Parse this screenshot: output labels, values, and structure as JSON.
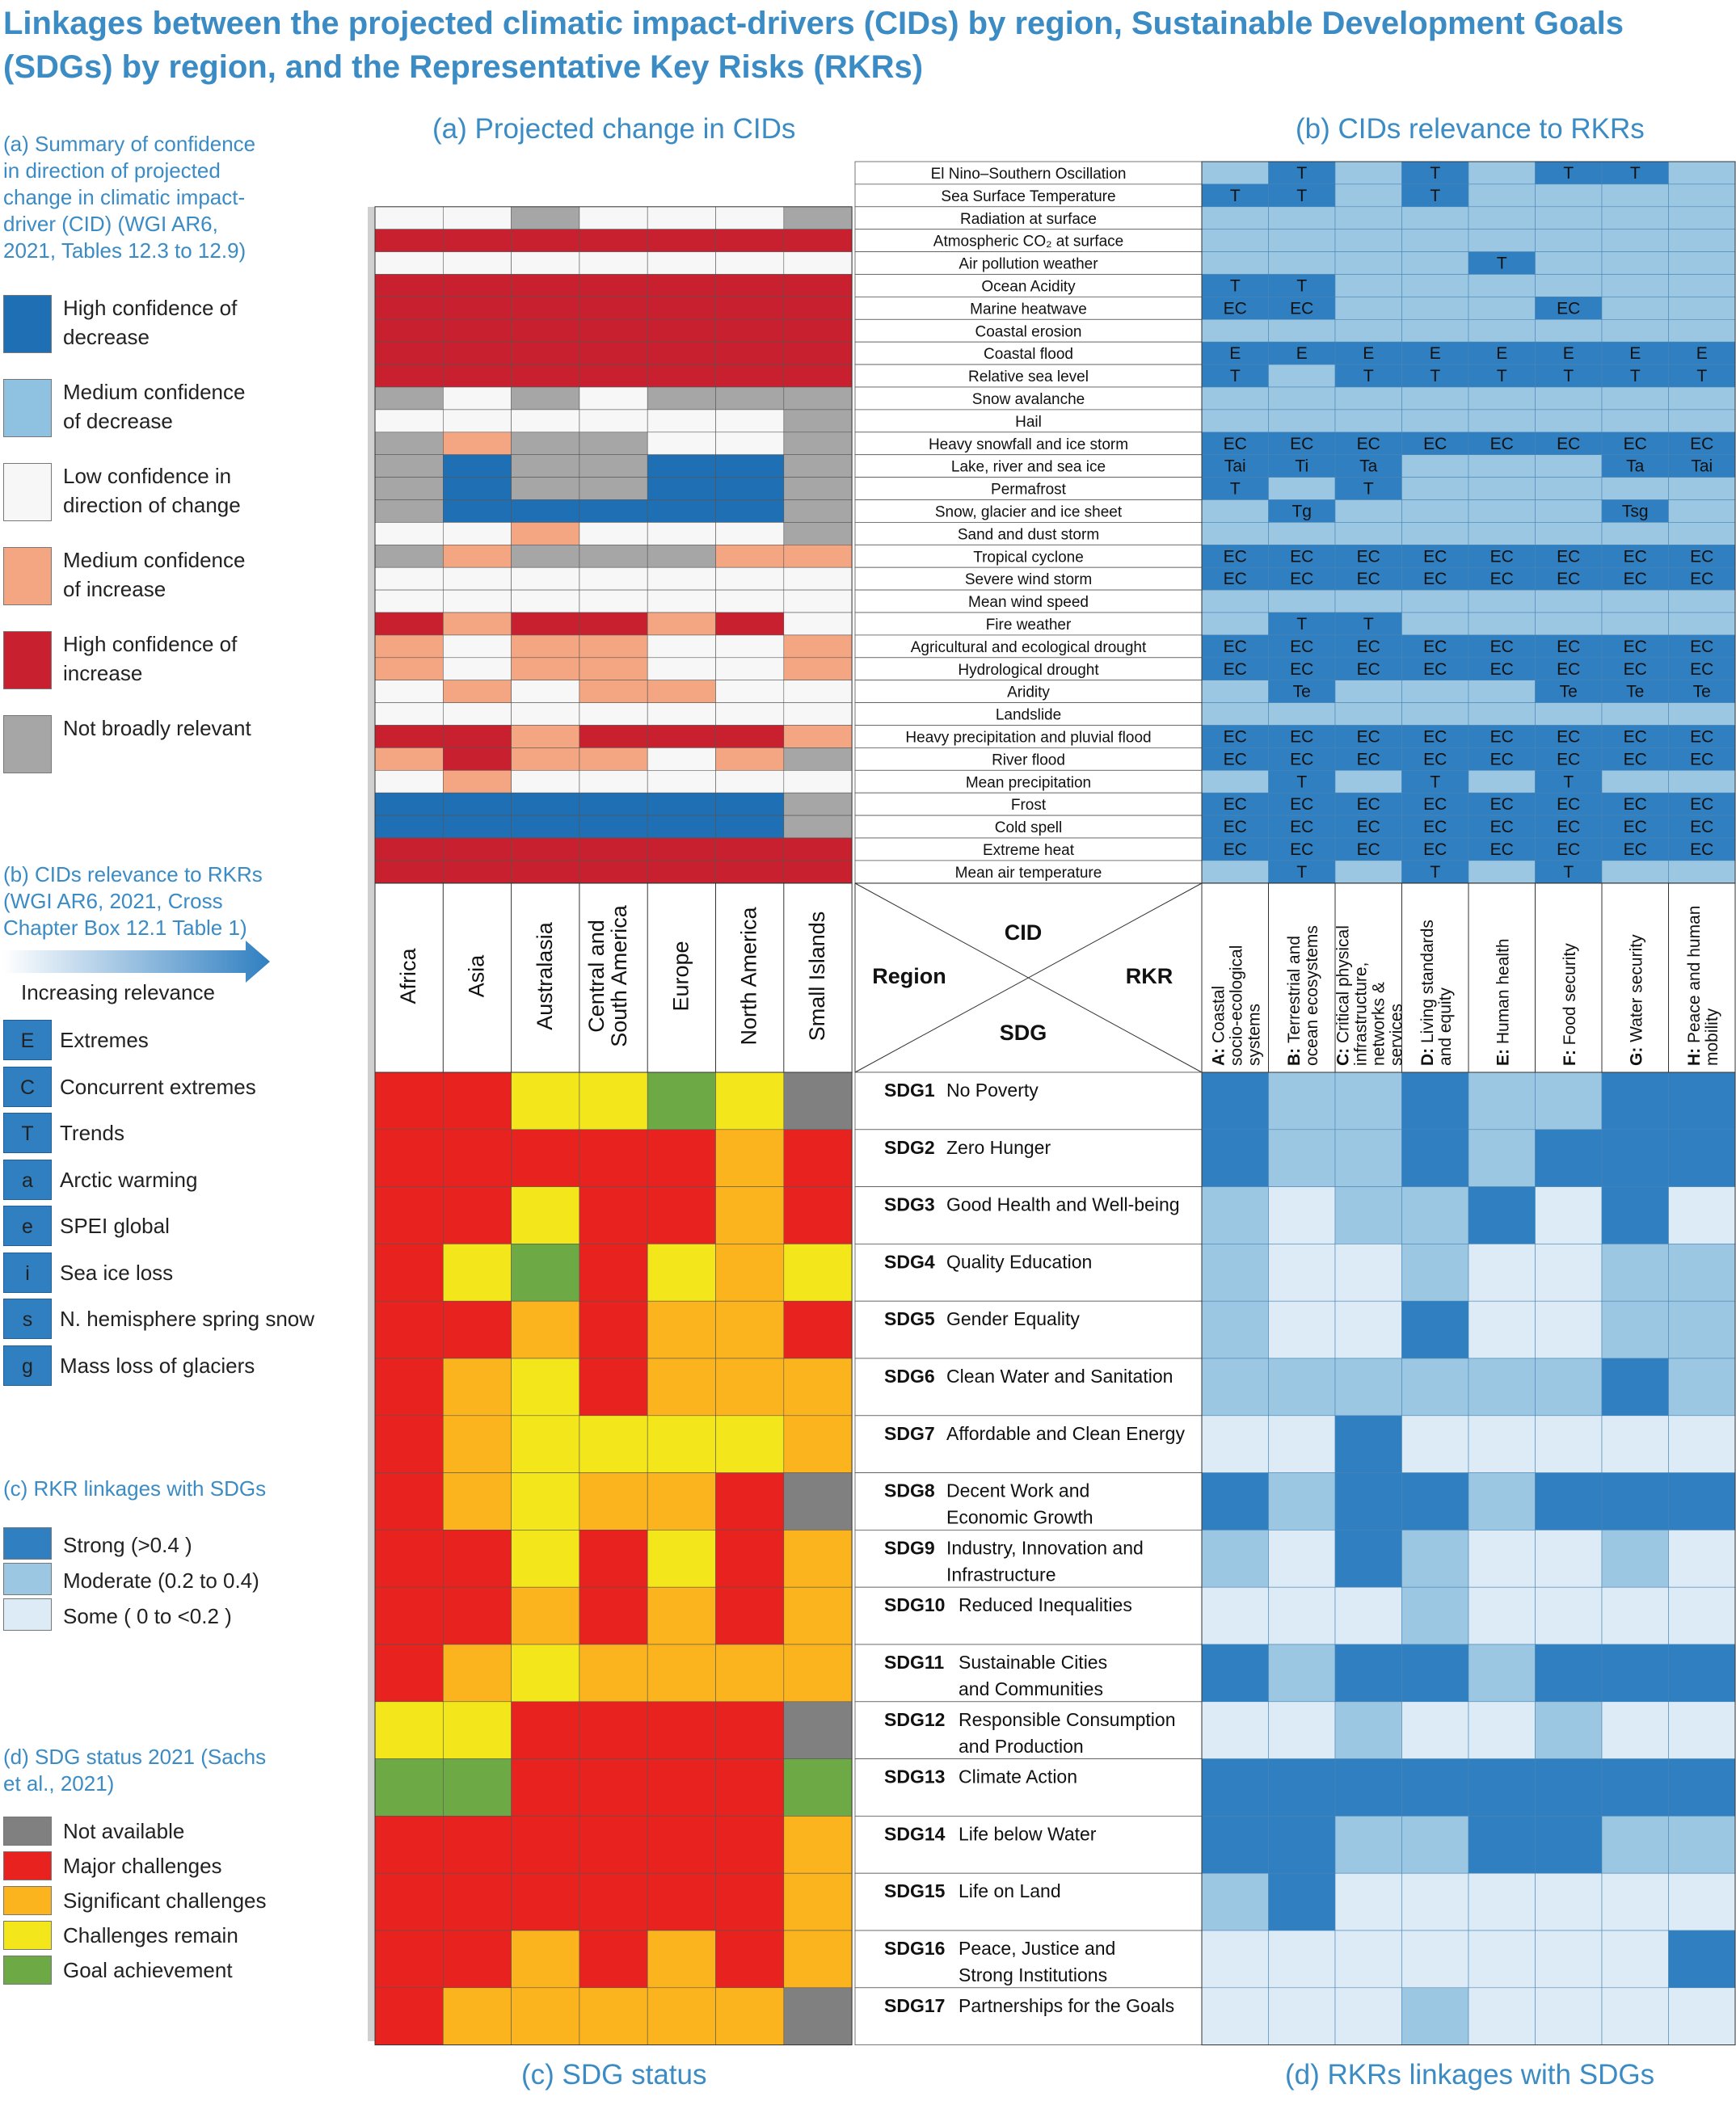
{
  "title": "Linkages between the projected climatic impact-drivers (CIDs) by region, Sustainable Development Goals (SDGs) by region, and the Representative Key Risks (RKRs)",
  "panels": {
    "a": "(a) Projected change in CIDs",
    "b": "(b) CIDs relevance to RKRs",
    "c": "(c) SDG status",
    "d": "(d) RKRs linkages with SDGs"
  },
  "corner": {
    "cid": "CID",
    "region": "Region",
    "rkr": "RKR",
    "sdg": "SDG"
  },
  "legend": {
    "a_title": "(a) Summary of confidence in direction of projected change in climatic impact-driver (CID) (WGI AR6, 2021, Tables 12.3 to 12.9)",
    "a_items": [
      {
        "label": "High confidence of decrease",
        "color": "#1F6FB4"
      },
      {
        "label": "Medium confidence of decrease",
        "color": "#8FC1E0"
      },
      {
        "label": "Low confidence in direction of change",
        "color": "#F7F7F7"
      },
      {
        "label": "Medium confidence of increase",
        "color": "#F4A582"
      },
      {
        "label": "High confidence of increase",
        "color": "#C8202E"
      },
      {
        "label": "Not broadly relevant",
        "color": "#A6A6A6"
      }
    ],
    "b_title": "(b) CIDs relevance to RKRs (WGI AR6, 2021, Cross Chapter Box 12.1 Table 1)",
    "b_arrow": "Increasing relevance",
    "b_codes": [
      {
        "code": "E",
        "label": "Extremes"
      },
      {
        "code": "C",
        "label": "Concurrent extremes"
      },
      {
        "code": "T",
        "label": "Trends"
      },
      {
        "code": "a",
        "label": "Arctic warming"
      },
      {
        "code": "e",
        "label": "SPEI global"
      },
      {
        "code": "i",
        "label": "Sea  ice loss"
      },
      {
        "code": "s",
        "label": "N. hemisphere spring snow"
      },
      {
        "code": "g",
        "label": "Mass loss of glaciers"
      }
    ],
    "c_title": "(c) RKR linkages with SDGs",
    "c_items": [
      {
        "label": "Strong  (>0.4 )",
        "color": "#2F7FC1"
      },
      {
        "label": "Moderate  (0.2 to 0.4)",
        "color": "#9CC7E3"
      },
      {
        "label": "Some ( 0 to <0.2 )",
        "color": "#DDEBF6"
      }
    ],
    "d_title": "(d) SDG status 2021 (Sachs et al., 2021)",
    "d_items": [
      {
        "label": "Not available",
        "color": "#808080"
      },
      {
        "label": "Major challenges",
        "color": "#E8221E"
      },
      {
        "label": "Significant challenges",
        "color": "#FBB41D"
      },
      {
        "label": "Challenges remain",
        "color": "#F3E61A"
      },
      {
        "label": "Goal achievement",
        "color": "#6DAA45"
      }
    ]
  },
  "chart_data": {
    "type": "heatmap",
    "regions": [
      "Africa",
      "Asia",
      "Australasia",
      "Central and South America",
      "Europe",
      "North America",
      "Small Islands"
    ],
    "rkrs": [
      {
        "letter": "A:",
        "name": "Coastal socio-ecological systems"
      },
      {
        "letter": "B:",
        "name": "Terrestrial and ocean ecosystems"
      },
      {
        "letter": "C:",
        "name": "Critical physical infrastructure, networks & services"
      },
      {
        "letter": "D:",
        "name": "Living standards and equity"
      },
      {
        "letter": "E:",
        "name": "Human health"
      },
      {
        "letter": "F:",
        "name": "Food security"
      },
      {
        "letter": "G:",
        "name": "Water security"
      },
      {
        "letter": "H:",
        "name": "Peace and human mobility"
      }
    ],
    "cids": [
      {
        "name": "El Nino–Southern Oscillation",
        "rkr_codes": [
          "",
          "T",
          "",
          "T",
          "",
          "T",
          "T",
          ""
        ],
        "region_only_rkr": true
      },
      {
        "name": "Sea Surface Temperature",
        "rkr_codes": [
          "T",
          "T",
          "",
          "T",
          "",
          "",
          "",
          ""
        ],
        "region_only_rkr": true
      },
      {
        "name": "Radiation at surface",
        "rkr_codes": [
          "",
          "",
          "",
          "",
          "",
          "",
          "",
          ""
        ],
        "regions": "LLNLLLN"
      },
      {
        "name": "Atmospheric CO₂ at surface",
        "rkr_codes": [
          "",
          "",
          "",
          "",
          "",
          "",
          "",
          ""
        ],
        "regions": "HHHHHHH"
      },
      {
        "name": "Air pollution weather",
        "rkr_codes": [
          "",
          "",
          "",
          "",
          "T",
          "",
          "",
          ""
        ],
        "regions": "LLLLLLL"
      },
      {
        "name": "Ocean Acidity",
        "rkr_codes": [
          "T",
          "T",
          "",
          "",
          "",
          "",
          "",
          ""
        ],
        "regions": "HHHHHHH"
      },
      {
        "name": "Marine heatwave",
        "rkr_codes": [
          "EC",
          "EC",
          "",
          "",
          "",
          "EC",
          "",
          ""
        ],
        "regions": "HHHHHHH"
      },
      {
        "name": "Coastal erosion",
        "rkr_codes": [
          "",
          "",
          "",
          "",
          "",
          "",
          "",
          ""
        ],
        "regions": "HHHHHHH"
      },
      {
        "name": "Coastal flood",
        "rkr_codes": [
          "E",
          "E",
          "E",
          "E",
          "E",
          "E",
          "E",
          "E"
        ],
        "regions": "HHHHHHH"
      },
      {
        "name": "Relative sea level",
        "rkr_codes": [
          "T",
          "",
          "T",
          "T",
          "T",
          "T",
          "T",
          "T"
        ],
        "regions": "HHHHHHH"
      },
      {
        "name": "Snow avalanche",
        "rkr_codes": [
          "",
          "",
          "",
          "",
          "",
          "",
          "",
          ""
        ],
        "regions": "NLNLNNN"
      },
      {
        "name": "Hail",
        "rkr_codes": [
          "",
          "",
          "",
          "",
          "",
          "",
          "",
          ""
        ],
        "regions": "LLLLLLN"
      },
      {
        "name": "Heavy snowfall and ice storm",
        "rkr_codes": [
          "EC",
          "EC",
          "EC",
          "EC",
          "EC",
          "EC",
          "EC",
          "EC"
        ],
        "regions": "NMNNLLN"
      },
      {
        "name": "Lake, river and sea ice",
        "rkr_codes": [
          "Tai",
          "Ti",
          "Ta",
          "",
          "",
          "",
          "Ta",
          "Tai"
        ],
        "regions": "NDNNDDN"
      },
      {
        "name": "Permafrost",
        "rkr_codes": [
          "T",
          "",
          "T",
          "",
          "",
          "",
          "",
          ""
        ],
        "regions": "NDNNDDN"
      },
      {
        "name": "Snow, glacier and ice sheet",
        "rkr_codes": [
          "",
          "Tg",
          "",
          "",
          "",
          "",
          "Tsg",
          ""
        ],
        "regions": "NDDDDDN"
      },
      {
        "name": "Sand and dust storm",
        "rkr_codes": [
          "",
          "",
          "",
          "",
          "",
          "",
          "",
          ""
        ],
        "regions": "LLMLLLN"
      },
      {
        "name": "Tropical cyclone",
        "rkr_codes": [
          "EC",
          "EC",
          "EC",
          "EC",
          "EC",
          "EC",
          "EC",
          "EC"
        ],
        "regions": "NMNNNMM"
      },
      {
        "name": "Severe wind storm",
        "rkr_codes": [
          "EC",
          "EC",
          "EC",
          "EC",
          "EC",
          "EC",
          "EC",
          "EC"
        ],
        "regions": "LLLLLLL"
      },
      {
        "name": "Mean wind speed",
        "rkr_codes": [
          "",
          "",
          "",
          "",
          "",
          "",
          "",
          ""
        ],
        "regions": "LLLLLLL"
      },
      {
        "name": "Fire weather",
        "rkr_codes": [
          "",
          "T",
          "T",
          "",
          "",
          "",
          "",
          ""
        ],
        "regions": "HMHHMHL"
      },
      {
        "name": "Agricultural and ecological drought",
        "rkr_codes": [
          "EC",
          "EC",
          "EC",
          "EC",
          "EC",
          "EC",
          "EC",
          "EC"
        ],
        "regions": "MLMMLLM"
      },
      {
        "name": "Hydrological drought",
        "rkr_codes": [
          "EC",
          "EC",
          "EC",
          "EC",
          "EC",
          "EC",
          "EC",
          "EC"
        ],
        "regions": "MLMMLLM"
      },
      {
        "name": "Aridity",
        "rkr_codes": [
          "",
          "Te",
          "",
          "",
          "",
          "Te",
          "Te",
          "Te"
        ],
        "regions": "LMLMMLL"
      },
      {
        "name": "Landslide",
        "rkr_codes": [
          "",
          "",
          "",
          "",
          "",
          "",
          "",
          ""
        ],
        "regions": "LLLLLLL"
      },
      {
        "name": "Heavy precipitation and pluvial flood",
        "rkr_codes": [
          "EC",
          "EC",
          "EC",
          "EC",
          "EC",
          "EC",
          "EC",
          "EC"
        ],
        "regions": "HHMHHHM"
      },
      {
        "name": "River flood",
        "rkr_codes": [
          "EC",
          "EC",
          "EC",
          "EC",
          "EC",
          "EC",
          "EC",
          "EC"
        ],
        "regions": "MHMMLMN"
      },
      {
        "name": "Mean precipitation",
        "rkr_codes": [
          "",
          "T",
          "",
          "T",
          "",
          "T",
          "",
          ""
        ],
        "regions": "LMLLLLL"
      },
      {
        "name": "Frost",
        "rkr_codes": [
          "EC",
          "EC",
          "EC",
          "EC",
          "EC",
          "EC",
          "EC",
          "EC"
        ],
        "regions": "DDDDDDN"
      },
      {
        "name": "Cold spell",
        "rkr_codes": [
          "EC",
          "EC",
          "EC",
          "EC",
          "EC",
          "EC",
          "EC",
          "EC"
        ],
        "regions": "DDDDDDN"
      },
      {
        "name": "Extreme heat",
        "rkr_codes": [
          "EC",
          "EC",
          "EC",
          "EC",
          "EC",
          "EC",
          "EC",
          "EC"
        ],
        "regions": "HHHHHHH"
      },
      {
        "name": "Mean air temperature",
        "rkr_codes": [
          "",
          "T",
          "",
          "T",
          "",
          "T",
          "",
          ""
        ],
        "regions": "HHHHHHH"
      }
    ],
    "sdgs": [
      {
        "id": "SDG1",
        "name": [
          "No Poverty"
        ],
        "status": "RRYYGYN",
        "rkr_links": "SMMSMMSS"
      },
      {
        "name": [
          "Zero Hunger"
        ],
        "id": "SDG2",
        "status": "RRRRRSR",
        "rkr_links": "SMMSMSSS"
      },
      {
        "id": "SDG3",
        "name": [
          "Good Health and Well-being"
        ],
        "status": "RRYRRSR",
        "rkr_links": "MWMMSWSW"
      },
      {
        "id": "SDG4",
        "name": [
          "Quality Education"
        ],
        "status": "RYGRYSY",
        "rkr_links": "MWWMWWMM"
      },
      {
        "id": "SDG5",
        "name": [
          "Gender Equality"
        ],
        "status": "RRSRSSR",
        "rkr_links": "MWWSWWMM"
      },
      {
        "id": "SDG6",
        "name": [
          "Clean Water and Sanitation"
        ],
        "status": "RSYRSSS",
        "rkr_links": "MMMMMMSM"
      },
      {
        "id": "SDG7",
        "name": [
          "Affordable and Clean Energy"
        ],
        "status": "RSYYYYS",
        "rkr_links": "WWSWWWWW"
      },
      {
        "id": "SDG8",
        "name": [
          "Decent Work and",
          "Economic Growth"
        ],
        "status": "RSYSSRN",
        "rkr_links": "SMSSMSSS"
      },
      {
        "id": "SDG9",
        "name": [
          "Industry, Innovation and",
          "Infrastructure"
        ],
        "status": "RRYRYRS",
        "rkr_links": "MWSMWWMW"
      },
      {
        "id": "SDG10",
        "name": [
          "Reduced Inequalities"
        ],
        "status": "RRSRSRS",
        "rkr_links": "WWWMWWWW"
      },
      {
        "id": "SDG11",
        "name": [
          "Sustainable Cities",
          "and Communities"
        ],
        "status": "RSYSSSS",
        "rkr_links": "SMSSMSSS"
      },
      {
        "id": "SDG12",
        "name": [
          "Responsible Consumption",
          "and Production"
        ],
        "status": "YYRRRRN",
        "rkr_links": "WWMWWMWW"
      },
      {
        "id": "SDG13",
        "name": [
          "Climate Action"
        ],
        "status": "GGRRRRG",
        "rkr_links": "SSSSSSSS"
      },
      {
        "id": "SDG14",
        "name": [
          "Life below Water"
        ],
        "status": "RRRRRRS",
        "rkr_links": "SSMMSSMM"
      },
      {
        "id": "SDG15",
        "name": [
          "Life on Land"
        ],
        "status": "RRRRRRS",
        "rkr_links": "MSWWWWWW"
      },
      {
        "id": "SDG16",
        "name": [
          "Peace, Justice and",
          "Strong Institutions"
        ],
        "status": "RRSRSRS",
        "rkr_links": "WWWWWWWS"
      },
      {
        "id": "SDG17",
        "name": [
          "Partnerships for the Goals"
        ],
        "status": "RSSSSSN",
        "rkr_links": "WWWMWWWW"
      }
    ]
  }
}
